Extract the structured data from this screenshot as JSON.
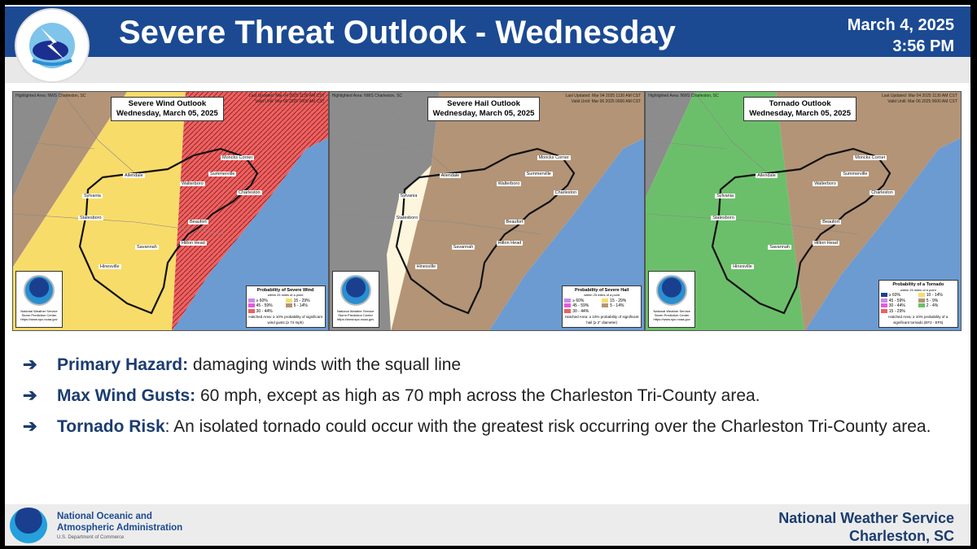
{
  "header": {
    "title": "Severe Threat Outlook - Wednesday",
    "date": "March 4, 2025",
    "time": "3:56 PM",
    "logo_text": "NATIONAL WEATHER SERVICE"
  },
  "maps": [
    {
      "title": "Severe Wind Outlook",
      "subtitle": "Wednesday, March 05, 2025",
      "highlighted": "Highlighted Area: NWS Charleston, SC",
      "updated": "Last Updated: Mar 04 2025 1130 AM CST",
      "valid": "Valid Until: Mar 06 2025 0600 AM CST",
      "legend_title": "Probability of Severe Wind",
      "legend_sub": "within 25 miles of a point",
      "legend": [
        {
          "label": "≥ 60%",
          "color": "#c88ce6"
        },
        {
          "label": "15 - 29%",
          "color": "#f8dc6a"
        },
        {
          "label": "45 - 59%",
          "color": "#e05ce0"
        },
        {
          "label": "5 - 14%",
          "color": "#b39477"
        },
        {
          "label": "30 - 44%",
          "color": "#f06060"
        }
      ],
      "note": "Hatched Area: ≥ 10% probability of significant wind gusts (≥ 74 mph)"
    },
    {
      "title": "Severe Hail Outlook",
      "subtitle": "Wednesday, March 05, 2025",
      "highlighted": "Highlighted Area: NWS Charleston, SC",
      "updated": "Last Updated: Mar 04 2025 1130 AM CST",
      "valid": "Valid Until: Mar 06 2025 0600 AM CST",
      "legend_title": "Probability of Severe Hail",
      "legend_sub": "within 25 miles of a point",
      "legend": [
        {
          "label": "≥ 60%",
          "color": "#c88ce6"
        },
        {
          "label": "15 - 29%",
          "color": "#f8dc6a"
        },
        {
          "label": "45 - 59%",
          "color": "#e05ce0"
        },
        {
          "label": "5 - 14%",
          "color": "#b39477"
        },
        {
          "label": "30 - 44%",
          "color": "#f06060"
        }
      ],
      "note": "Hatched Area: ≥ 10% probability of significant hail (≥ 2\" diameter)"
    },
    {
      "title": "Tornado Outlook",
      "subtitle": "Wednesday, March 05, 2025",
      "highlighted": "Highlighted Area: NWS Charleston, SC",
      "updated": "Last Updated: Mar 04 2025 1130 AM CST",
      "valid": "Valid Until: Mar 06 2025 0600 AM CST",
      "legend_title": "Probability of a Tornado",
      "legend_sub": "within 25 miles of a point",
      "legend": [
        {
          "label": "≥ 60%",
          "color": "#1f3f8f"
        },
        {
          "label": "10 - 14%",
          "color": "#f8dc6a"
        },
        {
          "label": "45 - 59%",
          "color": "#c88ce6"
        },
        {
          "label": "5 - 9%",
          "color": "#b39477"
        },
        {
          "label": "30 - 44%",
          "color": "#e05ce0"
        },
        {
          "label": "2 - 4%",
          "color": "#6cbf6a"
        },
        {
          "label": "15 - 29%",
          "color": "#f06060"
        }
      ],
      "note": "Hatched Area: ≥ 10% probability of a significant tornado (EF2 - EF5)"
    }
  ],
  "towns": [
    "Moncks Corner",
    "Allendale",
    "Summerville",
    "Walterboro",
    "Charleston",
    "Sylvania",
    "Statesboro",
    "Beaufort",
    "Savannah",
    "Hilton Head",
    "Hinesville"
  ],
  "noaa_box": "National Weather Service Storm Prediction Center https://www.spc.noaa.gov",
  "bullets": [
    {
      "label": "Primary Hazard:",
      "text": " damaging winds with the squall line"
    },
    {
      "label": "Max Wind Gusts:",
      "text": " 60 mph, except as high as 70 mph across the Charleston Tri-County area."
    },
    {
      "label": "Tornado Risk",
      "text": ": An isolated tornado could occur with the greatest risk occurring over the Charleston Tri-County area."
    }
  ],
  "footer": {
    "org_line1": "National Oceanic and",
    "org_line2": "Atmospheric Administration",
    "dept": "U.S. Department of Commerce",
    "nws_line1": "National Weather Service",
    "nws_line2": "Charleston, SC"
  }
}
